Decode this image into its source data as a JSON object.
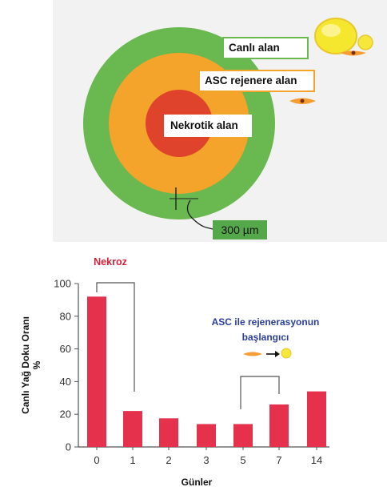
{
  "diagram": {
    "zones": [
      {
        "label": "Canlı alan",
        "color": "#6ab850"
      },
      {
        "label": "ASC rejenere alan",
        "color": "#f4a42a"
      },
      {
        "label": "Nekrotik alan",
        "color": "#e0432b"
      }
    ],
    "scale_label": "300 µm"
  },
  "chart_data": {
    "type": "bar",
    "categories": [
      "0",
      "1",
      "2",
      "3",
      "5",
      "7",
      "14"
    ],
    "values": [
      92,
      22,
      17.5,
      14,
      14,
      26,
      34
    ],
    "title": "",
    "xlabel": "Günler",
    "ylabel": "Canlı Yağ Doku Oranı",
    "ylabel_unit": "%",
    "ylim": [
      0,
      100
    ],
    "yticks": [
      0,
      20,
      40,
      60,
      80,
      100
    ],
    "bar_color": "#e5314c",
    "annotations": {
      "necrosis": "Nekroz",
      "regeneration_line1": "ASC ile rejenerasyonun",
      "regeneration_line2": "başlangıcı"
    }
  }
}
